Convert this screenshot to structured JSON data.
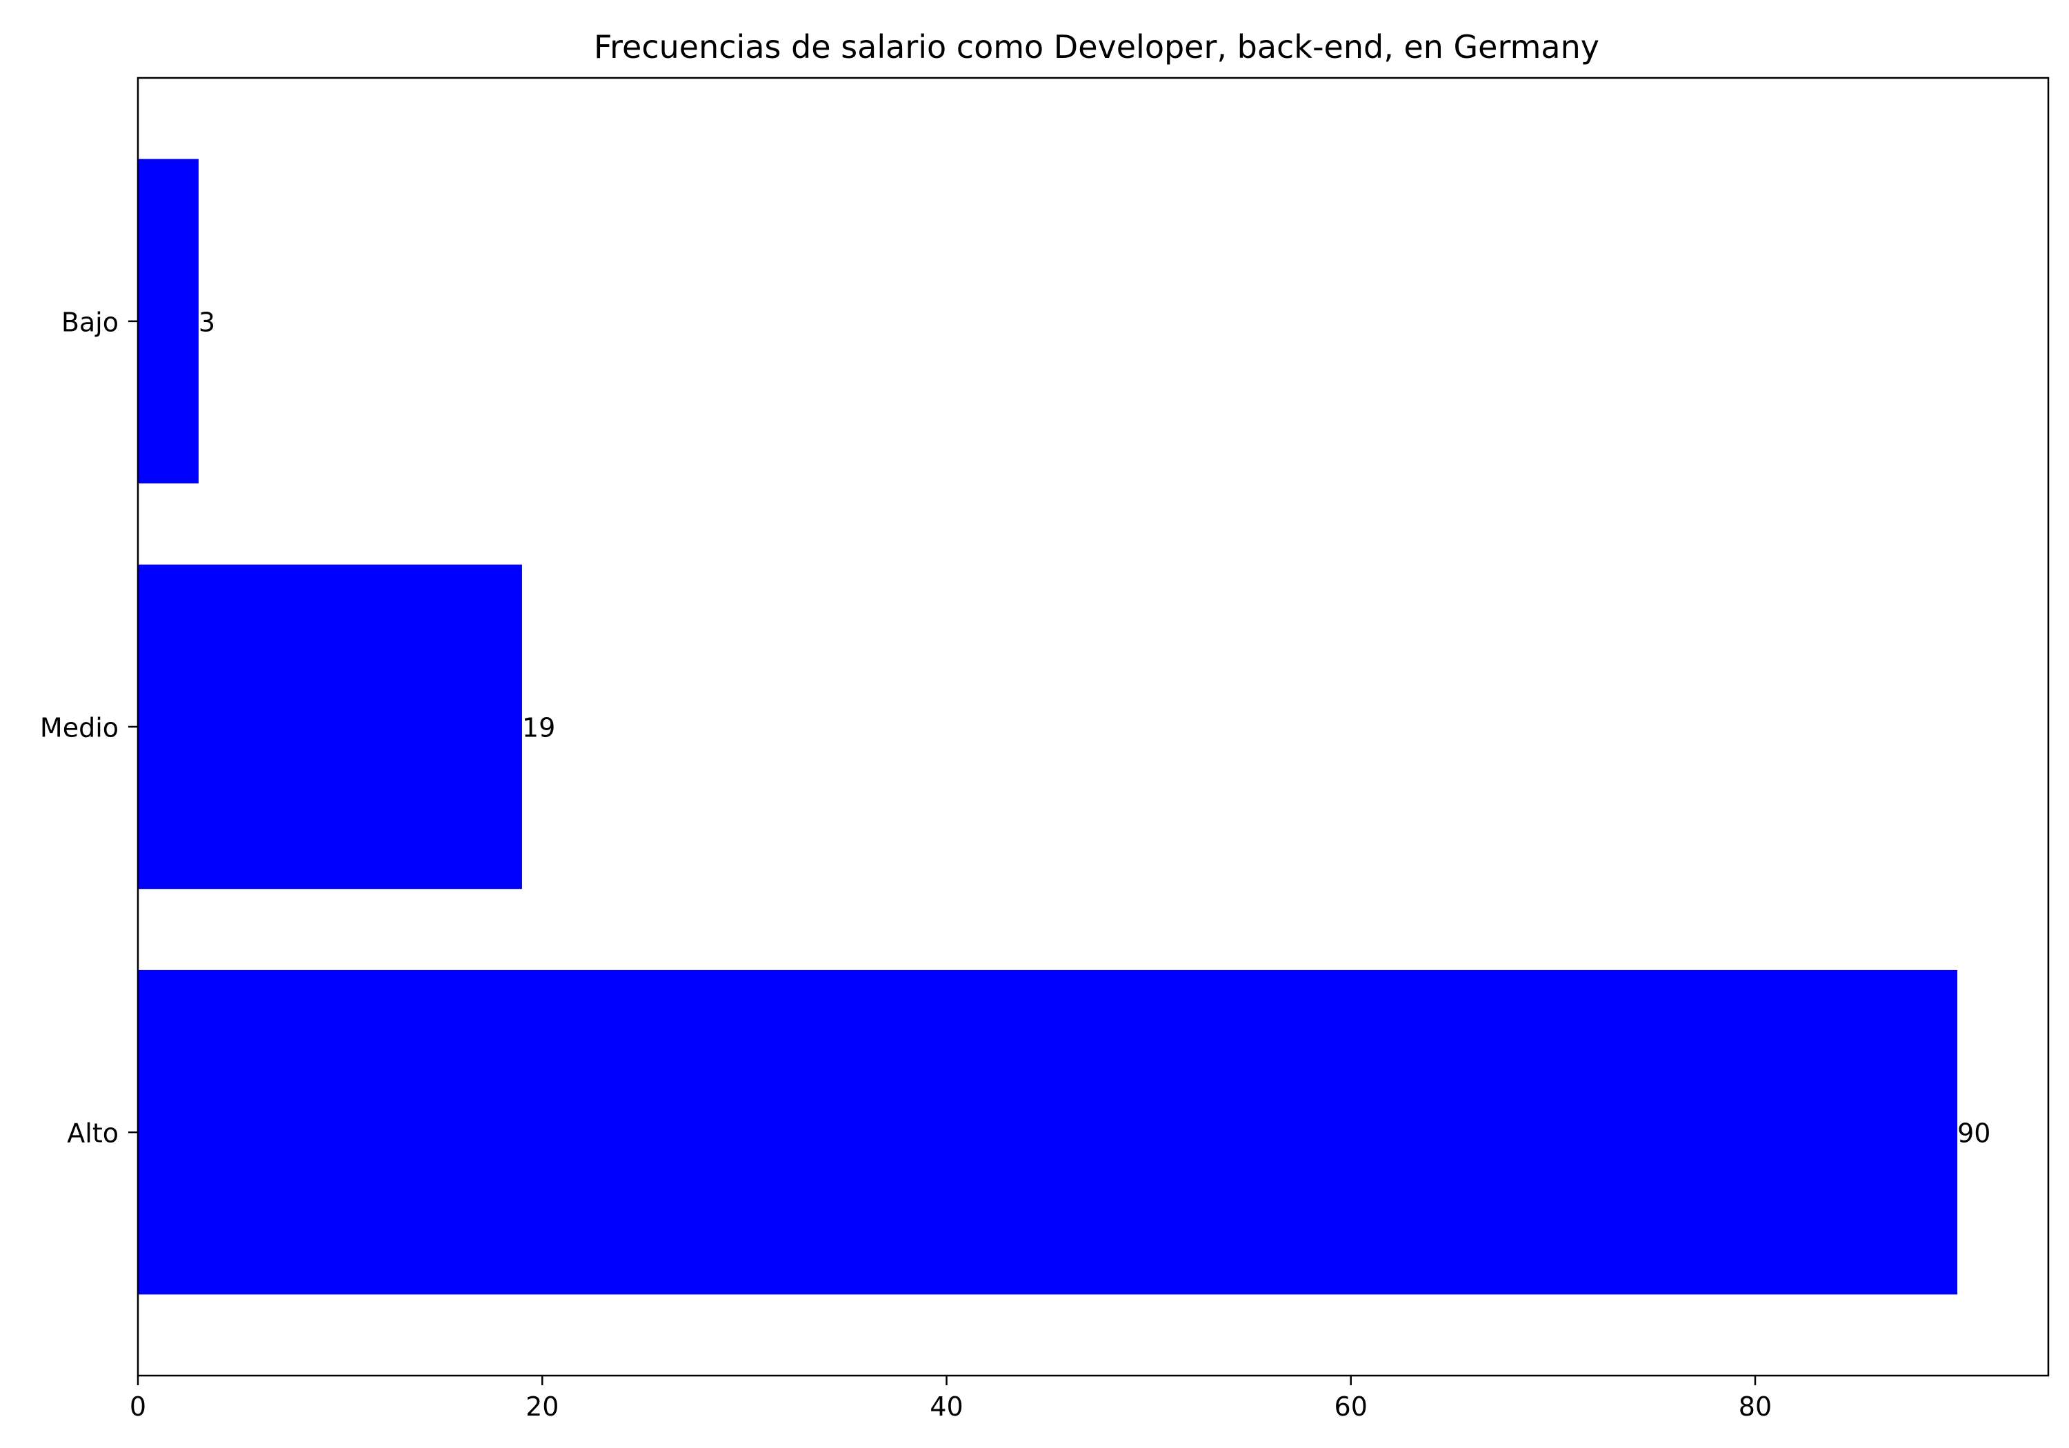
{
  "chart_data": {
    "type": "bar",
    "orientation": "horizontal",
    "title": "Frecuencias de salario como Developer, back-end, en Germany",
    "xlabel": "",
    "ylabel": "",
    "categories": [
      "Alto",
      "Medio",
      "Bajo"
    ],
    "values": [
      90,
      19,
      3
    ],
    "data_labels": [
      "90",
      "19",
      "3"
    ],
    "xlim": [
      0,
      94.5
    ],
    "xticks": [
      0,
      20,
      40,
      60,
      80
    ],
    "xtick_labels": [
      "0",
      "20",
      "40",
      "60",
      "80"
    ],
    "bar_color": "#0000ff",
    "grid": false,
    "legend": "none"
  }
}
